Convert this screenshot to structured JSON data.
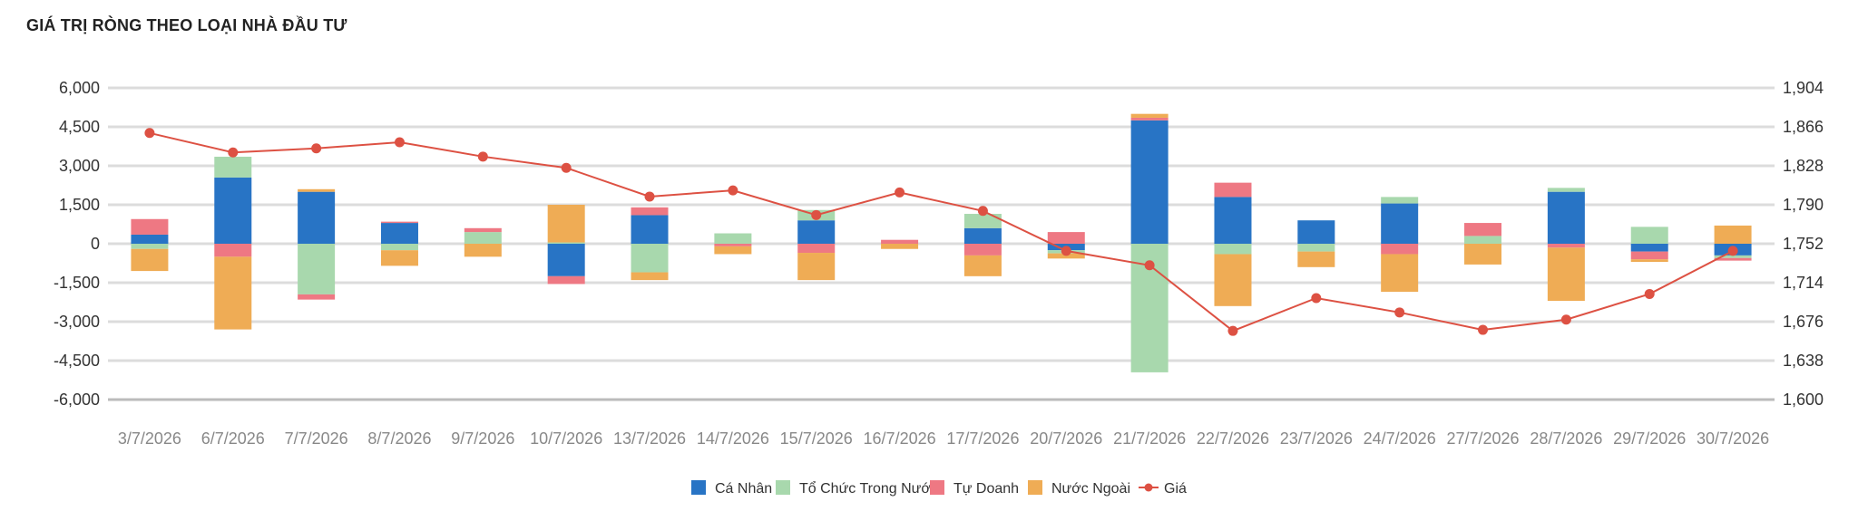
{
  "title": "GIÁ TRỊ RÒNG THEO LOẠI NHÀ ĐẦU TƯ",
  "chart_data": {
    "type": "bar",
    "stacked": true,
    "categories": [
      "3/7/2026",
      "6/7/2026",
      "7/7/2026",
      "8/7/2026",
      "9/7/2026",
      "10/7/2026",
      "13/7/2026",
      "14/7/2026",
      "15/7/2026",
      "16/7/2026",
      "17/7/2026",
      "20/7/2026",
      "21/7/2026",
      "22/7/2026",
      "23/7/2026",
      "24/7/2026",
      "27/7/2026",
      "28/7/2026",
      "29/7/2026",
      "30/7/2026"
    ],
    "y_left": {
      "ticks": [
        "6,000",
        "4,500",
        "3,000",
        "1,500",
        "0",
        "-1,500",
        "-3,000",
        "-4,500",
        "-6,000"
      ],
      "range": [
        -6000,
        6000
      ]
    },
    "y_right": {
      "ticks": [
        "1,904",
        "1,866",
        "1,828",
        "1,790",
        "1,752",
        "1,714",
        "1,676",
        "1,638",
        "1,600"
      ],
      "range": [
        1600,
        1904
      ]
    },
    "grid": true,
    "legend_position": "bottom",
    "series": [
      {
        "name": "Cá Nhân",
        "color": "#2874c5",
        "values": [
          350,
          2550,
          2000,
          800,
          0,
          -1250,
          1100,
          0,
          900,
          0,
          600,
          -250,
          4750,
          1800,
          900,
          1550,
          0,
          2000,
          -300,
          -450
        ]
      },
      {
        "name": "Tổ Chức Trong Nước",
        "color": "#a8d8ad",
        "values": [
          -200,
          800,
          -1950,
          -250,
          450,
          50,
          -1100,
          400,
          400,
          0,
          550,
          -120,
          -4950,
          -400,
          -300,
          250,
          300,
          150,
          650,
          -100
        ]
      },
      {
        "name": "Tự Doanh",
        "color": "#ee7883",
        "values": [
          600,
          -500,
          -200,
          50,
          150,
          -300,
          300,
          -100,
          -350,
          150,
          -450,
          450,
          100,
          550,
          0,
          -400,
          500,
          -150,
          -300,
          -100
        ]
      },
      {
        "name": "Nước Ngoài",
        "color": "#efac55",
        "values": [
          -850,
          -2800,
          100,
          -600,
          -500,
          1450,
          -300,
          -300,
          -1050,
          -200,
          -800,
          -200,
          150,
          -2000,
          -600,
          -1450,
          -800,
          -2050,
          -100,
          700
        ]
      },
      {
        "name": "Giá",
        "type": "line",
        "axis": "right",
        "color": "#dd5143",
        "values": [
          1860,
          1841,
          1845,
          1851,
          1837,
          1826,
          1798,
          1804,
          1780,
          1802,
          1784,
          1745,
          1731,
          1667,
          1699,
          1685,
          1668,
          1678,
          1703,
          1745
        ]
      }
    ]
  }
}
